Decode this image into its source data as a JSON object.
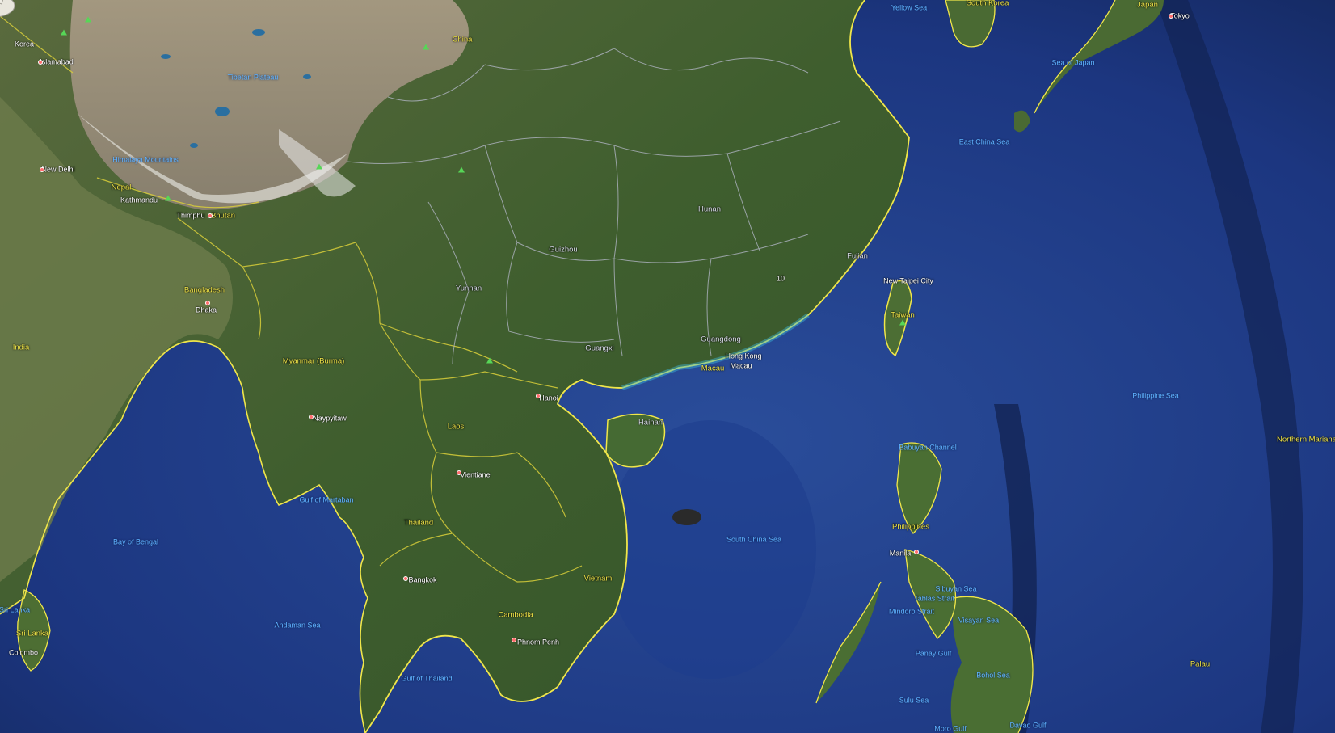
{
  "map": {
    "pin_icon": "pushpin-icon",
    "labels": {
      "korea": "Korea",
      "islamabad": "Islamabad",
      "china": "China",
      "yellow_sea": "Yellow Sea",
      "south_korea": "South Korea",
      "japan": "Japan",
      "tokyo": "Tokyo",
      "tibetan_plateau": "Tibetan Plateau",
      "sea_of_japan": "Sea of Japan",
      "himalaya": "Himalaya Mountains",
      "new_delhi": "New Delhi",
      "nepal": "Nepal",
      "kathmandu": "Kathmandu",
      "thimphu": "Thimphu",
      "bhutan": "Bhutan",
      "east_china_sea": "East China Sea",
      "hunan": "Hunan",
      "guizhou": "Guizhou",
      "fujian": "Fujian",
      "pin_number": "10",
      "new_taipei": "New Taipei City",
      "yunnan": "Yunnan",
      "bangladesh": "Bangladesh",
      "dhaka": "Dhaka",
      "taiwan": "Taiwan",
      "india": "India",
      "guangdong": "Guangdong",
      "guangxi": "Guangxi",
      "hong_kong": "Hong Kong",
      "macau_sar": "Macau",
      "macau": "Macau",
      "myanmar": "Myanmar (Burma)",
      "hanoi": "Hanoi",
      "philippine_sea": "Philippine Sea",
      "naypyitaw": "Naypyitaw",
      "hainan": "Hainan",
      "laos": "Laos",
      "babuyan": "Babuyan Channel",
      "northern_mariana": "Northern Mariana Is",
      "vientiane": "Vientiane",
      "gulf_martaban": "Gulf of Martaban",
      "thailand": "Thailand",
      "philippines": "Philippines",
      "bay_bengal": "Bay of Bengal",
      "south_china_sea": "South China Sea",
      "manila": "Manila",
      "vietnam": "Vietnam",
      "bangkok": "Bangkok",
      "sibuyan": "Sibuyan Sea",
      "tablas": "Tablas Strait",
      "mindoro": "Mindoro Strait",
      "visayan": "Visayan Sea",
      "sri_lanka_a": "Sri Lanka",
      "sri_lanka_b": "Sri Lanka",
      "cambodia": "Cambodia",
      "andaman": "Andaman Sea",
      "phnom_penh": "Phnom Penh",
      "colombo": "Colombo",
      "panay": "Panay Gulf",
      "bohol": "Bohol Sea",
      "palau": "Palau",
      "gulf_thailand": "Gulf of Thailand",
      "sulu": "Sulu Sea",
      "moro": "Moro Gulf",
      "davao": "Davao Gulf"
    }
  }
}
